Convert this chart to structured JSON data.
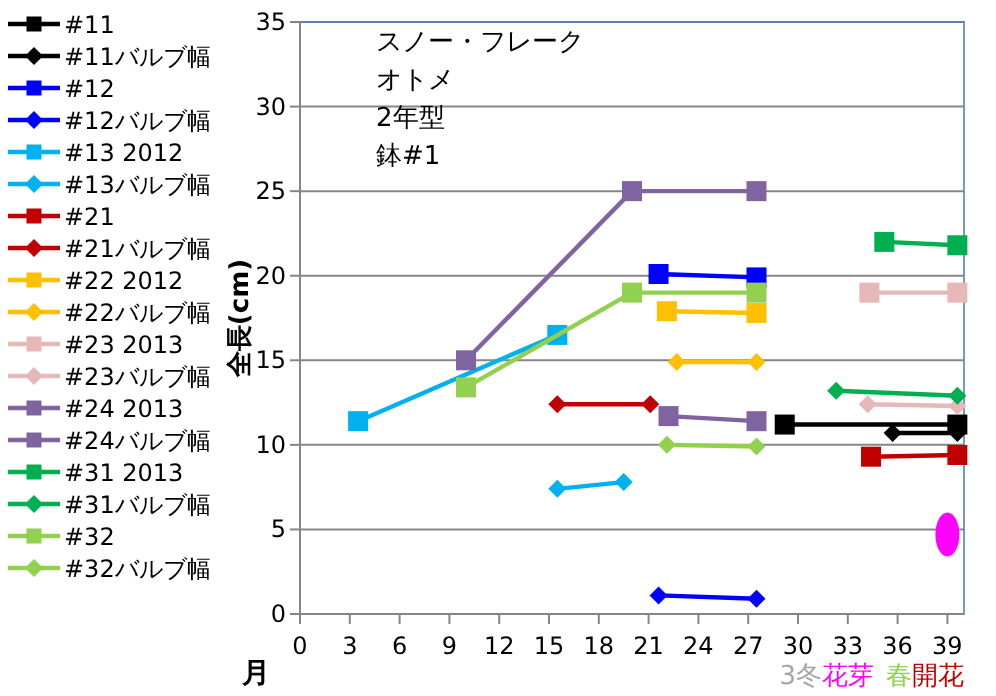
{
  "chart_data": {
    "type": "line",
    "ylabel": "全長(cm)",
    "xlabel": "月",
    "annotations": [
      "スノー・フレーク",
      "オトメ",
      "2年型",
      "鉢#1",
      "3冬",
      "花芽",
      "春",
      "開花"
    ],
    "xlim": [
      0,
      40
    ],
    "ylim": [
      0,
      35
    ],
    "xticks": [
      0,
      3,
      6,
      9,
      12,
      15,
      18,
      21,
      24,
      27,
      30,
      33,
      36,
      39
    ],
    "yticks": [
      0,
      5,
      10,
      15,
      20,
      25,
      30,
      35
    ],
    "grid": "y",
    "legend": "left",
    "series": [
      {
        "name": "#11",
        "color": "#000000",
        "marker": "square",
        "x": [
          29.2,
          39.6
        ],
        "values": [
          11.2,
          11.2
        ]
      },
      {
        "name": "#11バルブ幅",
        "color": "#000000",
        "marker": "diamond",
        "x": [
          35.7,
          39.6
        ],
        "values": [
          10.7,
          10.7
        ]
      },
      {
        "name": "#12",
        "color": "#0000ff",
        "marker": "square",
        "x": [
          21.6,
          27.5
        ],
        "values": [
          20.1,
          19.9
        ]
      },
      {
        "name": "#12バルブ幅",
        "color": "#0000ff",
        "marker": "diamond",
        "x": [
          21.6,
          27.5
        ],
        "values": [
          1.1,
          0.9
        ]
      },
      {
        "name": "#13 2012",
        "color": "#00b0f0",
        "marker": "square",
        "x": [
          3.5,
          15.5
        ],
        "values": [
          11.4,
          16.5
        ]
      },
      {
        "name": "#13バルブ幅",
        "color": "#00b0f0",
        "marker": "diamond",
        "x": [
          15.5,
          19.5
        ],
        "values": [
          7.4,
          7.8
        ]
      },
      {
        "name": "#21",
        "color": "#c00000",
        "marker": "square",
        "x": [
          34.4,
          39.6
        ],
        "values": [
          9.3,
          9.4
        ]
      },
      {
        "name": "#21バルブ幅",
        "color": "#c00000",
        "marker": "diamond",
        "x": [
          15.5,
          21.1
        ],
        "values": [
          12.4,
          12.4
        ]
      },
      {
        "name": "#22 2012",
        "color": "#ffc000",
        "marker": "square",
        "x": [
          22.1,
          27.5
        ],
        "values": [
          17.9,
          17.8
        ]
      },
      {
        "name": "#22バルブ幅",
        "color": "#ffc000",
        "marker": "diamond",
        "x": [
          22.7,
          27.5
        ],
        "values": [
          14.9,
          14.9
        ]
      },
      {
        "name": "#23 2013",
        "color": "#e6b9b8",
        "marker": "square",
        "x": [
          34.3,
          39.6
        ],
        "values": [
          19.0,
          19.0
        ]
      },
      {
        "name": "#23バルブ幅",
        "color": "#e6b9b8",
        "marker": "diamond",
        "x": [
          34.2,
          39.6
        ],
        "values": [
          12.4,
          12.3
        ]
      },
      {
        "name": "#24 2013",
        "color": "#8064a2",
        "marker": "square",
        "x": [
          10.0,
          20.0,
          27.5
        ],
        "values": [
          15.0,
          25.0,
          25.0
        ]
      },
      {
        "name": "#24バルブ幅",
        "color": "#8064a2",
        "marker": "square",
        "x": [
          22.2,
          27.5
        ],
        "values": [
          11.7,
          11.4
        ]
      },
      {
        "name": "#31 2013",
        "color": "#00b050",
        "marker": "square",
        "x": [
          35.2,
          39.6
        ],
        "values": [
          22.0,
          21.8
        ]
      },
      {
        "name": "#31バルブ幅",
        "color": "#00b050",
        "marker": "diamond",
        "x": [
          32.3,
          39.6
        ],
        "values": [
          13.2,
          12.9
        ]
      },
      {
        "name": "#32",
        "color": "#92d050",
        "marker": "square",
        "x": [
          10.0,
          20.0,
          27.5
        ],
        "values": [
          13.4,
          19.0,
          19.0
        ]
      },
      {
        "name": "#32バルブ幅",
        "color": "#92d050",
        "marker": "diamond",
        "x": [
          22.1,
          27.5
        ],
        "values": [
          10.0,
          9.9
        ]
      },
      {
        "color": "#ff00ff",
        "marker": "circle",
        "type": "scatter",
        "x": [
          39.0
        ],
        "values": [
          4.7
        ]
      }
    ]
  }
}
